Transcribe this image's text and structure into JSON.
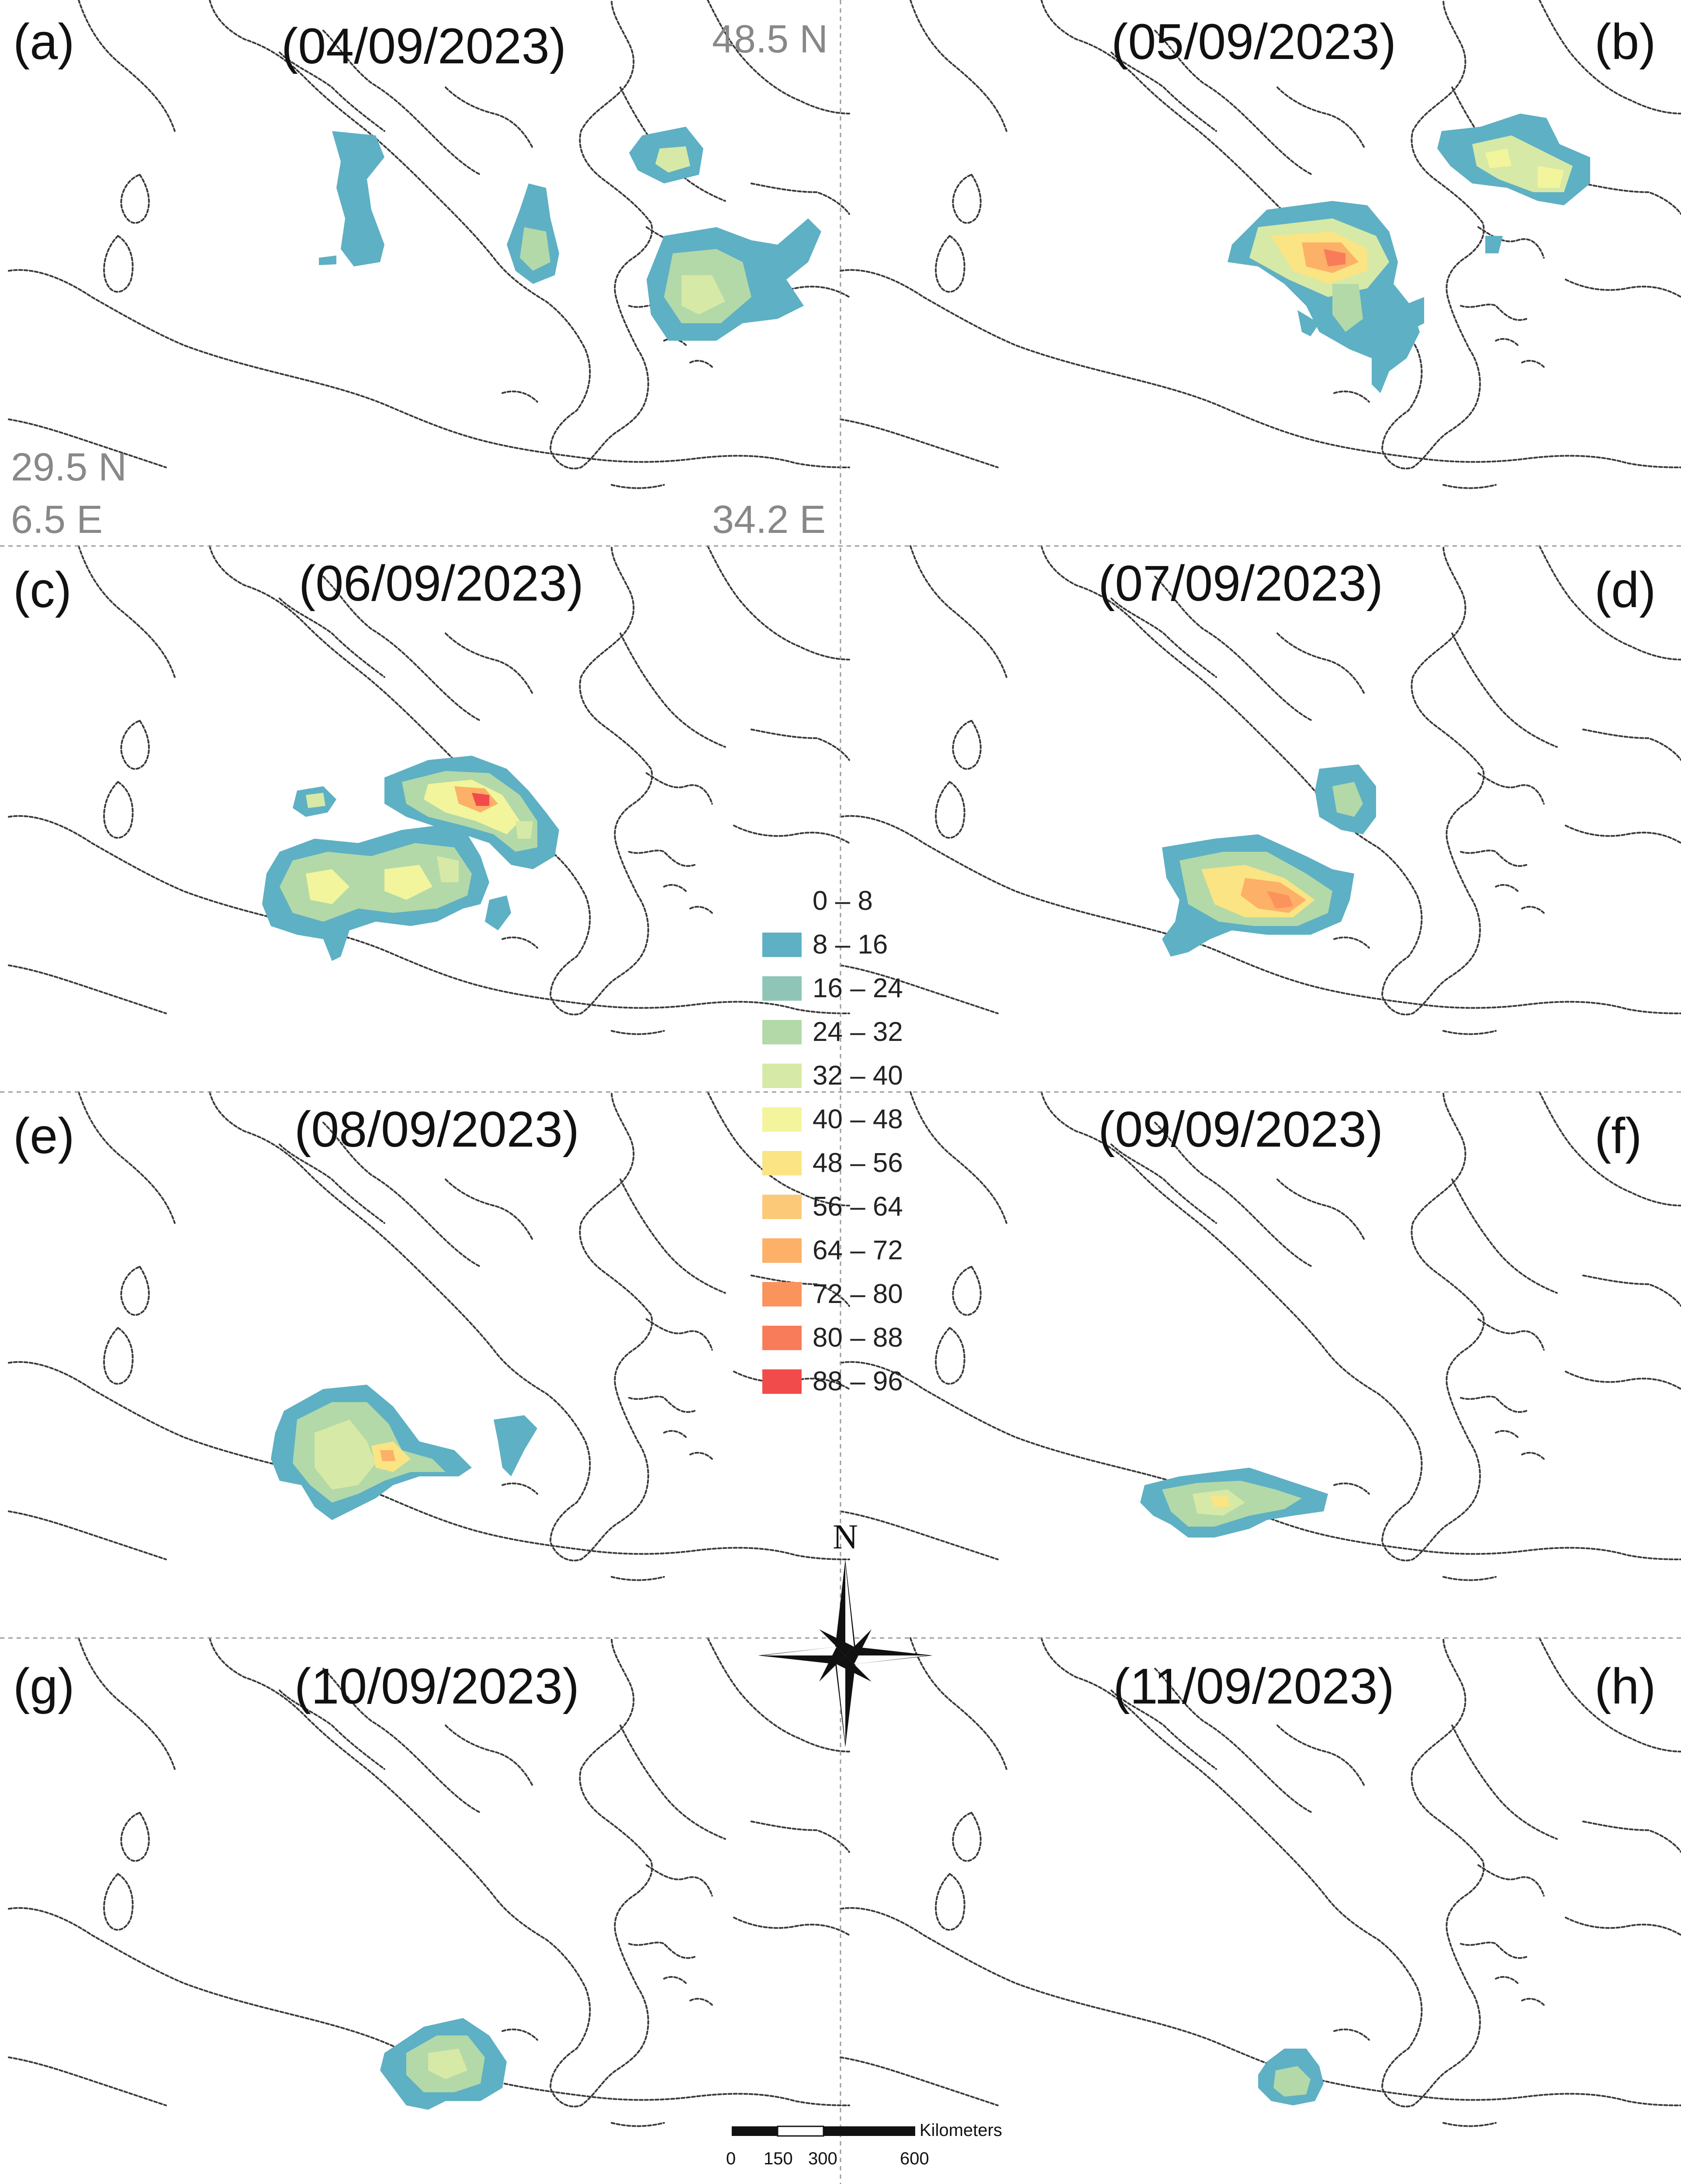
{
  "panels": [
    {
      "letter": "(a)",
      "date": "(04/09/2023)"
    },
    {
      "letter": "(b)",
      "date": "(05/09/2023)"
    },
    {
      "letter": "(c)",
      "date": "(06/09/2023)"
    },
    {
      "letter": "(d)",
      "date": "(07/09/2023)"
    },
    {
      "letter": "(e)",
      "date": "(08/09/2023)"
    },
    {
      "letter": "(f)",
      "date": "(09/09/2023)"
    },
    {
      "letter": "(g)",
      "date": "(10/09/2023)"
    },
    {
      "letter": "(h)",
      "date": "(11/09/2023)"
    }
  ],
  "coords": {
    "north": "48.5 N",
    "south": "29.5 N",
    "west": "6.5 E",
    "east": "34.2 E"
  },
  "legend": {
    "classes": [
      {
        "label": "0 – 8",
        "color": "#ffffff"
      },
      {
        "label": "8 – 16",
        "color": "#5eb0c4"
      },
      {
        "label": "16 – 24",
        "color": "#8fc5b7"
      },
      {
        "label": "24 – 32",
        "color": "#b3d9a8"
      },
      {
        "label": "32 – 40",
        "color": "#d7e9a6"
      },
      {
        "label": "40 – 48",
        "color": "#f2f59c"
      },
      {
        "label": "48 – 56",
        "color": "#fbe483"
      },
      {
        "label": "56 – 64",
        "color": "#fcc979"
      },
      {
        "label": "64 – 72",
        "color": "#fdb068"
      },
      {
        "label": "72 – 80",
        "color": "#fb935c"
      },
      {
        "label": "80 – 88",
        "color": "#f87c59"
      },
      {
        "label": "88 – 96",
        "color": "#f24b4b"
      }
    ]
  },
  "north_arrow": {
    "label": "N"
  },
  "scale_bar": {
    "unit": "Kilometers",
    "ticks": [
      "0",
      "150",
      "300",
      "600"
    ]
  }
}
